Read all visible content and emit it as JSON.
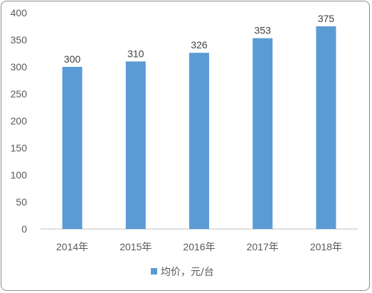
{
  "chart_data": {
    "type": "bar",
    "categories": [
      "2014年",
      "2015年",
      "2016年",
      "2017年",
      "2018年"
    ],
    "series": [
      {
        "name": "均价，元/台",
        "values": [
          300,
          310,
          326,
          353,
          375
        ]
      }
    ],
    "y_ticks": [
      "0",
      "50",
      "100",
      "150",
      "200",
      "250",
      "300",
      "350",
      "400"
    ],
    "ylim": [
      0,
      400
    ],
    "grid": false,
    "legend": "bottom",
    "bar_color": "#5b9bd5",
    "data_labels": true
  }
}
